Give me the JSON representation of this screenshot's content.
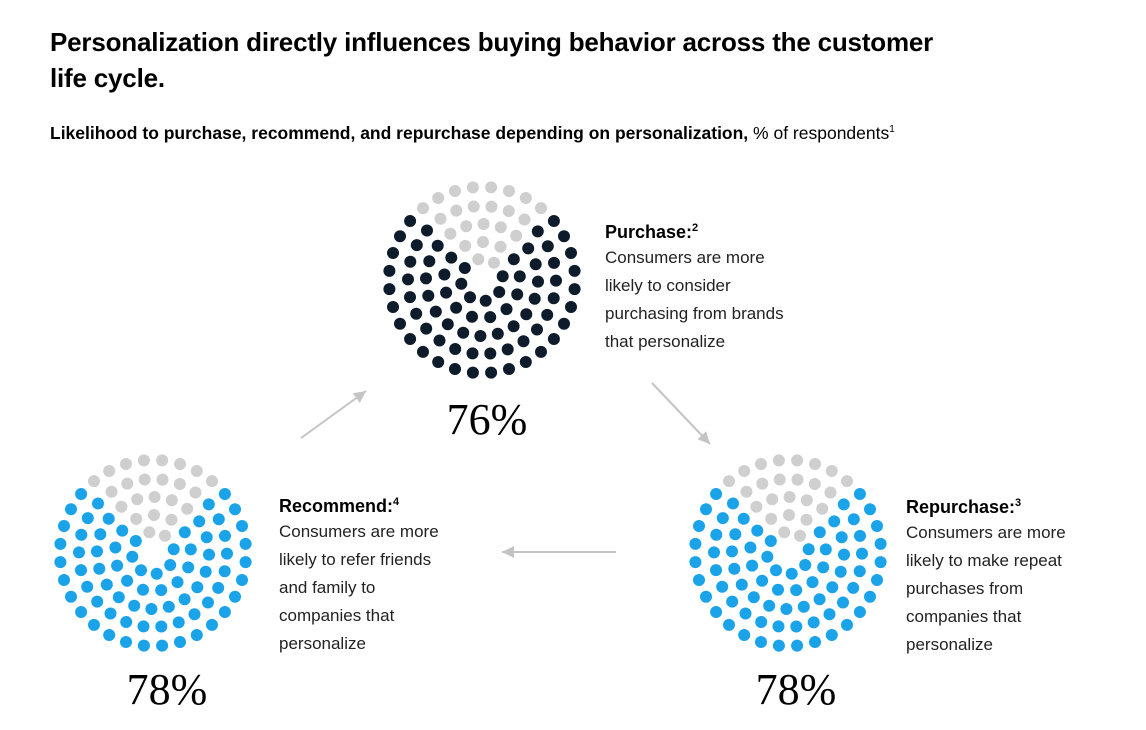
{
  "header": {
    "title": "Personalization directly influences buying behavior across the customer life cycle.",
    "subtitle_bold": "Likelihood to purchase, recommend, and repurchase depending on personalization,",
    "subtitle_regular": " % of respondents",
    "subtitle_footnote": "1"
  },
  "colors": {
    "filled_dark": "#0d1b2a",
    "filled_blue": "#1aa3e8",
    "unfilled": "#cfcfcf",
    "arrow": "#c4c4c4"
  },
  "chart_data": {
    "type": "dot-pie",
    "unit": "% of respondents",
    "items": [
      {
        "id": "purchase",
        "label": "Purchase:",
        "footnote": "2",
        "description": "Consumers are more\nlikely to consider\npurchasing from brands\nthat personalize",
        "value": 76,
        "value_label": "76%",
        "color": "#0d1b2a"
      },
      {
        "id": "repurchase",
        "label": "Repurchase:",
        "footnote": "3",
        "description": "Consumers are more\nlikely to make repeat\npurchases from\ncompanies that\npersonalize",
        "value": 78,
        "value_label": "78%",
        "color": "#1aa3e8"
      },
      {
        "id": "recommend",
        "label": "Recommend:",
        "footnote": "4",
        "description": "Consumers are more\nlikely to refer friends\nand family to\ncompanies that\npersonalize",
        "value": 78,
        "value_label": "78%",
        "color": "#1aa3e8"
      }
    ],
    "flow": [
      "recommend",
      "purchase",
      "repurchase",
      "recommend"
    ]
  }
}
